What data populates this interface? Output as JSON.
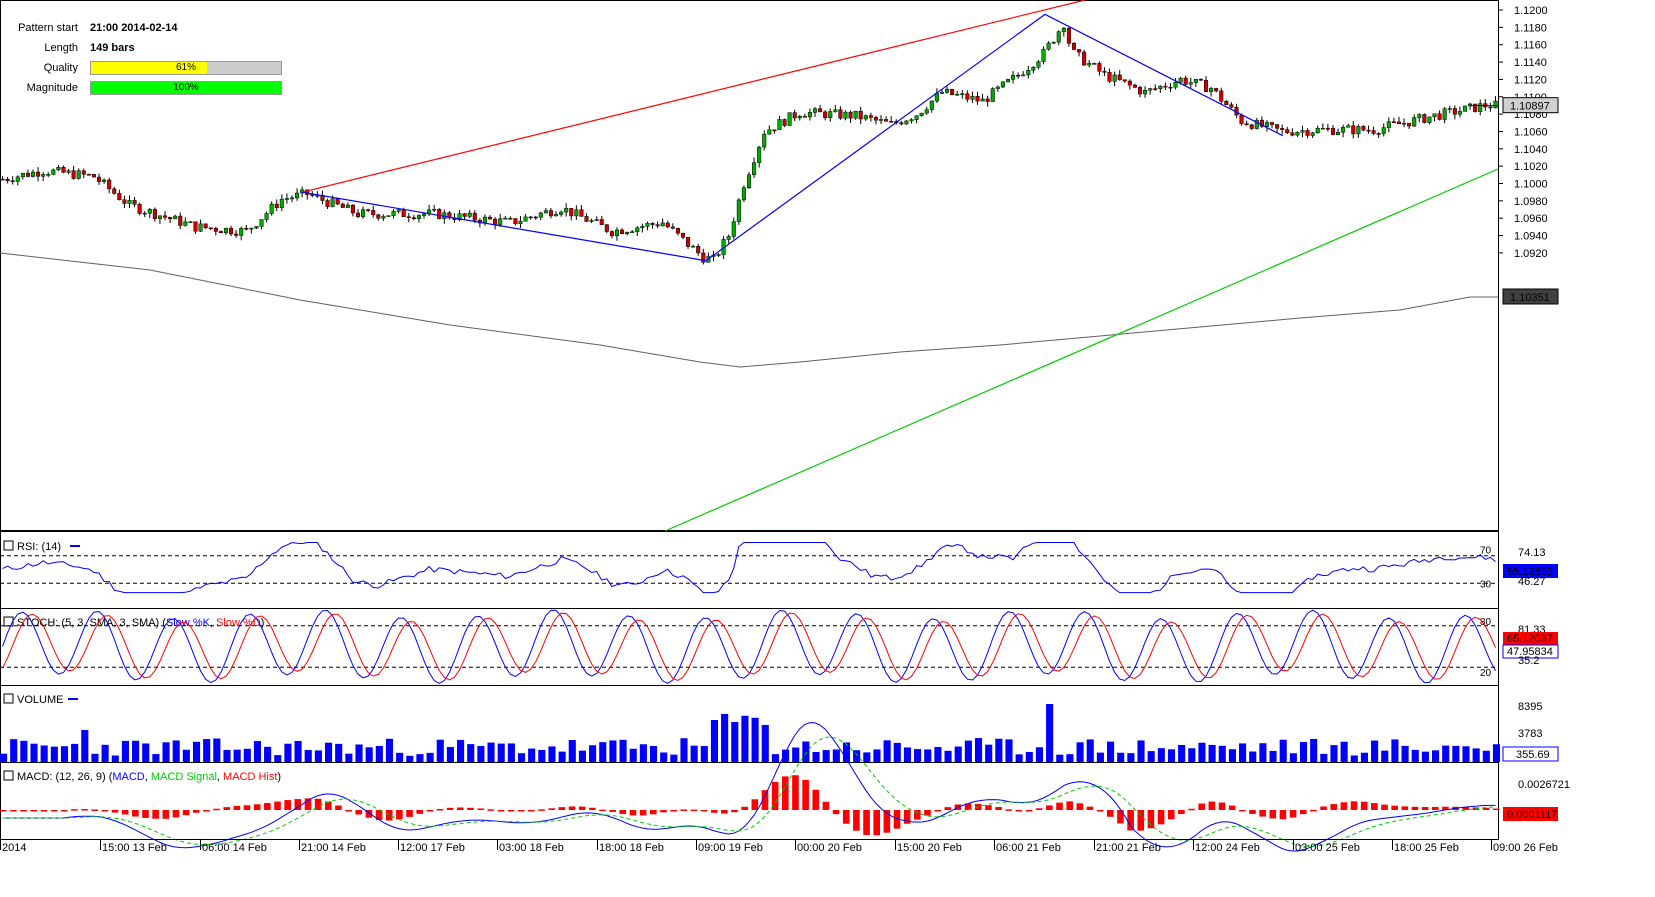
{
  "pattern_info": {
    "start_label": "Pattern start",
    "start_value": "21:00 2014-02-14",
    "length_label": "Length",
    "length_value": "149 bars",
    "quality_label": "Quality",
    "quality_value": "61%",
    "quality_fraction": 0.61,
    "magnitude_label": "Magnitude",
    "magnitude_value": "100%",
    "magnitude_fraction": 1.0,
    "quality_color": "#ffff00",
    "magnitude_color": "#00ff00"
  },
  "colors": {
    "bull": "#00aa00",
    "bear": "#cc0000",
    "blue": "#0000ff",
    "red": "#ff0000",
    "green": "#00cc00",
    "ma": "#606060"
  },
  "chart_data": {
    "type": "candlestick",
    "price_ticks": [
      "1.1200",
      "1.1180",
      "1.1160",
      "1.1140",
      "1.1120",
      "1.1100",
      "1.1080",
      "1.1060",
      "1.1040",
      "1.1020",
      "1.1000",
      "1.0980",
      "1.0960",
      "1.0940",
      "1.0920"
    ],
    "last_price": "1.10897",
    "ma_price": "1.10351",
    "time_labels": [
      "2014",
      "15:00 13 Feb",
      "06:00 14 Feb",
      "21:00 14 Feb",
      "12:00 17 Feb",
      "03:00 18 Feb",
      "18:00 18 Feb",
      "09:00 19 Feb",
      "00:00 20 Feb",
      "15:00 20 Feb",
      "06:00 21 Feb",
      "21:00 21 Feb",
      "12:00 24 Feb",
      "03:00 25 Feb",
      "18:00 25 Feb",
      "09:00 26 Feb"
    ],
    "pattern_points": [
      {
        "time": "21:00 14 Feb",
        "price": 1.099
      },
      {
        "time": "09:00 19 Feb",
        "price": 1.0911
      },
      {
        "time": "06:00 21 Feb",
        "price": 1.1195
      },
      {
        "time": "12:00 24 Feb",
        "price": 1.1055
      }
    ],
    "rsi": {
      "label": "RSI: (14)",
      "levels": [
        "70",
        "30"
      ],
      "values": [
        "74.13",
        "55.12803",
        "46.27"
      ]
    },
    "stoch": {
      "label": "STOCH: (5, 3, SMA, 3, SMA)",
      "k_name": "Slow %K",
      "d_name": "Slow %D",
      "levels": [
        "80",
        "20"
      ],
      "values": [
        "81.33",
        "65.12037",
        "47.95834",
        "35.2"
      ]
    },
    "volume": {
      "label": "VOLUME",
      "values": [
        "8395",
        "3783",
        "355.69"
      ]
    },
    "macd": {
      "label": "MACD: (12, 26, 9)",
      "macd_name": "MACD",
      "signal_name": "MACD Signal",
      "hist_name": "MACD Hist",
      "values": [
        "0.0026721",
        "0.0001117"
      ]
    }
  }
}
